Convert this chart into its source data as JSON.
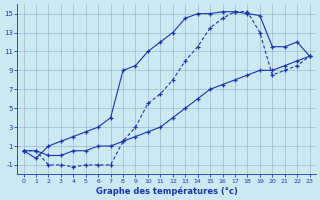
{
  "line1_x": [
    0,
    1,
    2,
    3,
    4,
    5,
    6,
    7,
    8,
    9,
    10,
    11,
    12,
    13,
    14,
    15,
    16,
    17,
    18,
    19,
    20,
    21,
    22,
    23
  ],
  "line1_y": [
    0.5,
    -0.3,
    1.0,
    1.5,
    2.0,
    2.5,
    3.0,
    4.0,
    9.0,
    9.5,
    11.0,
    12.0,
    13.0,
    14.5,
    15.0,
    15.0,
    15.2,
    15.2,
    15.0,
    14.8,
    11.5,
    11.5,
    12.0,
    10.5
  ],
  "line2_x": [
    0,
    1,
    2,
    3,
    4,
    5,
    6,
    7,
    8,
    9,
    10,
    11,
    12,
    13,
    14,
    15,
    16,
    17,
    18,
    19,
    20,
    21,
    22,
    23
  ],
  "line2_y": [
    0.5,
    0.5,
    -1.0,
    -1.0,
    -1.2,
    -1.0,
    -1.0,
    -1.0,
    1.5,
    3.0,
    5.5,
    6.5,
    8.0,
    10.0,
    11.5,
    13.5,
    14.5,
    15.2,
    15.2,
    13.0,
    8.5,
    9.0,
    9.5,
    10.5
  ],
  "line3_x": [
    0,
    1,
    2,
    3,
    4,
    5,
    6,
    7,
    8,
    9,
    10,
    11,
    12,
    13,
    14,
    15,
    16,
    17,
    18,
    19,
    20,
    21,
    22,
    23
  ],
  "line3_y": [
    0.5,
    0.5,
    0.0,
    0.0,
    0.5,
    0.5,
    1.0,
    1.0,
    1.5,
    2.0,
    2.5,
    3.0,
    4.0,
    5.0,
    6.0,
    7.0,
    7.5,
    8.0,
    8.5,
    9.0,
    9.0,
    9.5,
    10.0,
    10.5
  ],
  "line_color": "#1a35aa",
  "bg_color": "#cce8f0",
  "grid_color": "#9abccc",
  "xlabel": "Graphe des températures (°c)",
  "xlim": [
    -0.5,
    23.5
  ],
  "ylim": [
    -2.0,
    16.0
  ],
  "yticks": [
    -1,
    1,
    3,
    5,
    7,
    9,
    11,
    13,
    15
  ],
  "xticks": [
    0,
    1,
    2,
    3,
    4,
    5,
    6,
    7,
    8,
    9,
    10,
    11,
    12,
    13,
    14,
    15,
    16,
    17,
    18,
    19,
    20,
    21,
    22,
    23
  ],
  "figw": 3.2,
  "figh": 2.0,
  "dpi": 100
}
